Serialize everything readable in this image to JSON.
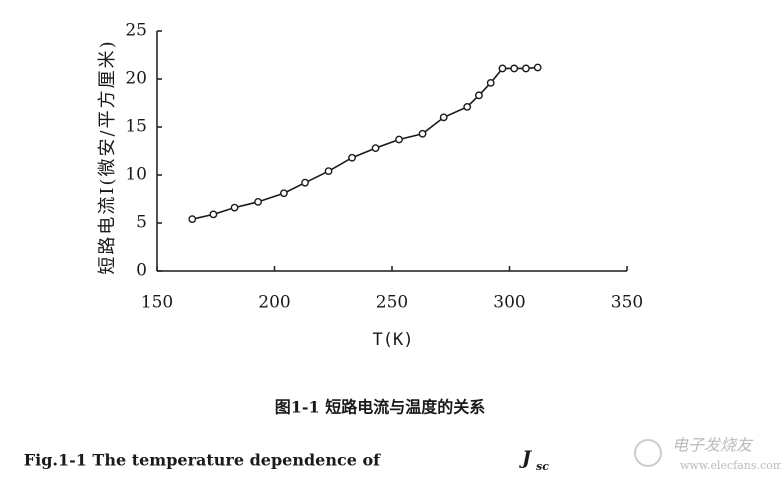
{
  "chart_data": {
    "type": "line",
    "ylabel": "短路电流I(微安/平方厘米)",
    "xlabel": "T(K)",
    "caption_cn": "图1-1  短路电流与温度的关系",
    "caption_en": "Fig.1-1 The temperature dependence of",
    "caption_symbol": "J",
    "caption_symbol_sub": "sc",
    "watermark": "电子发烧友",
    "watermark_url": "www.elecfans.com",
    "x": [
      165,
      174,
      183,
      193,
      204,
      213,
      223,
      233,
      243,
      253,
      263,
      272,
      282,
      287,
      292,
      297,
      302,
      307,
      312
    ],
    "values": [
      5.4,
      5.9,
      6.6,
      7.2,
      8.1,
      9.2,
      10.4,
      11.8,
      12.8,
      13.7,
      14.3,
      16.0,
      17.1,
      18.3,
      19.6,
      21.1,
      21.1,
      21.1,
      21.2
    ],
    "color": "#1a1a1a",
    "xlim": [
      150,
      350
    ],
    "xticks": [
      150,
      200,
      250,
      300,
      350
    ],
    "ylim": [
      0,
      25
    ],
    "yticks": [
      0,
      5,
      10,
      15,
      20,
      25
    ],
    "grid": false
  }
}
